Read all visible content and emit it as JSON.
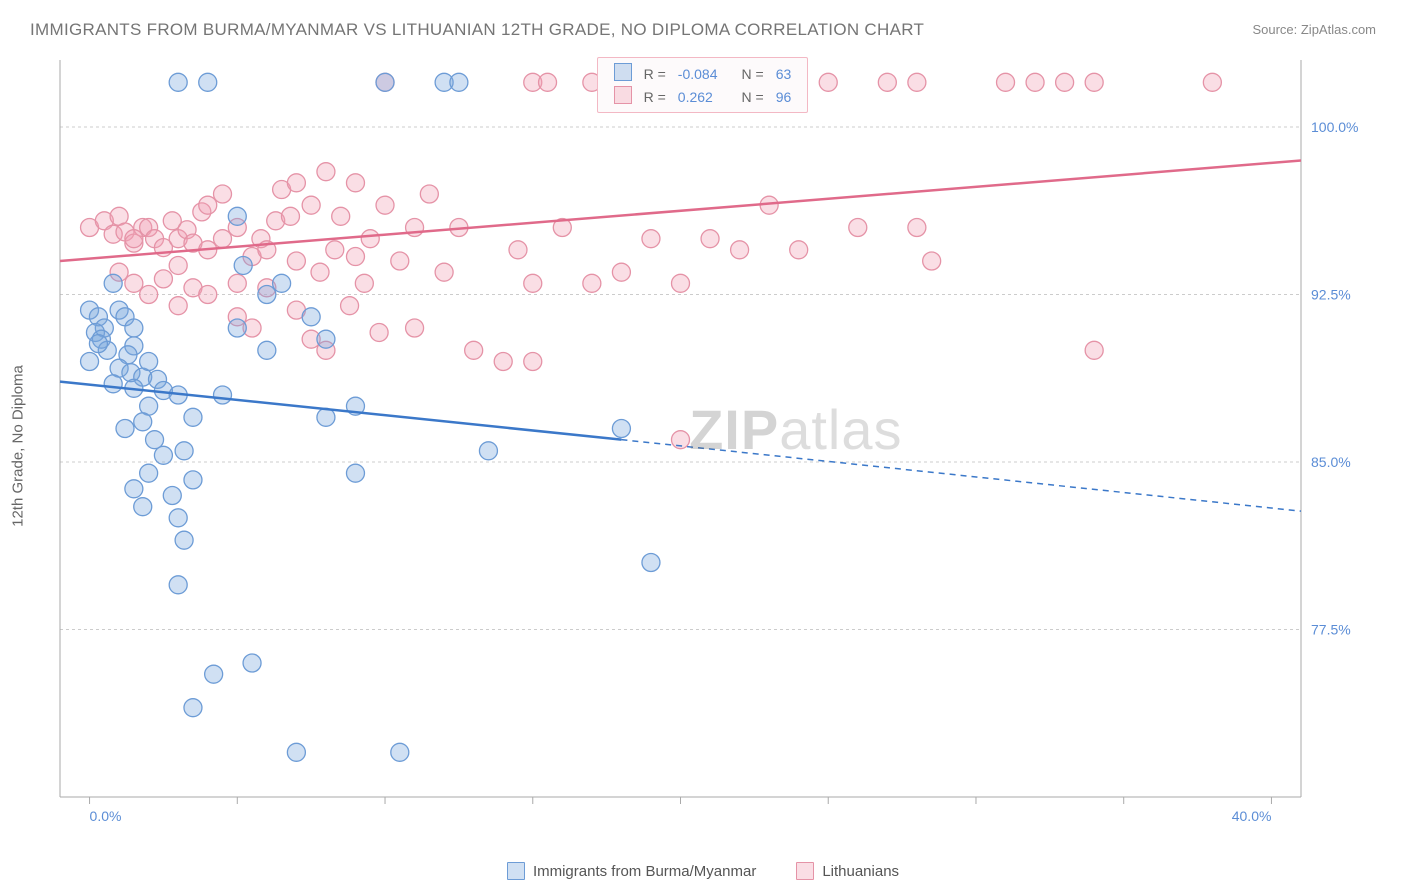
{
  "title": "IMMIGRANTS FROM BURMA/MYANMAR VS LITHUANIAN 12TH GRADE, NO DIPLOMA CORRELATION CHART",
  "source": "Source: ZipAtlas.com",
  "y_axis_label": "12th Grade, No Diploma",
  "watermark": {
    "part1": "ZIP",
    "part2": "atlas"
  },
  "colors": {
    "series_a_fill": "rgba(120,165,220,0.35)",
    "series_a_stroke": "#6d9cd6",
    "series_a_line": "#3b78c9",
    "series_b_fill": "rgba(240,160,180,0.35)",
    "series_b_stroke": "#e593a7",
    "series_b_line": "#e06a8a",
    "tick_text": "#5b8dd6",
    "grid": "#cccccc",
    "axis": "#aaaaaa"
  },
  "chart": {
    "type": "scatter",
    "xlim": [
      -1,
      41
    ],
    "ylim": [
      70,
      103
    ],
    "x_ticks": [
      0,
      5,
      10,
      15,
      20,
      25,
      30,
      35,
      40
    ],
    "x_tick_labels_shown": {
      "0": "0.0%",
      "40": "40.0%"
    },
    "y_ticks": [
      77.5,
      85.0,
      92.5,
      100.0
    ],
    "y_tick_labels": [
      "77.5%",
      "85.0%",
      "92.5%",
      "100.0%"
    ],
    "marker_radius": 9,
    "marker_stroke_width": 1.3,
    "trend_line_width": 2.5,
    "series_a": {
      "name": "Immigrants from Burma/Myanmar",
      "R": "-0.084",
      "N": "63",
      "trend": {
        "x1": -1,
        "y1": 88.6,
        "x2_solid": 18,
        "y2_solid": 86.0,
        "x2": 41,
        "y2": 82.8
      },
      "points": [
        [
          0,
          91.8
        ],
        [
          0.3,
          91.5
        ],
        [
          0.5,
          91.0
        ],
        [
          0.2,
          90.8
        ],
        [
          0.4,
          90.5
        ],
        [
          0.6,
          90.0
        ],
        [
          0.3,
          90.3
        ],
        [
          0,
          89.5
        ],
        [
          1,
          91.8
        ],
        [
          1.2,
          91.5
        ],
        [
          1.5,
          90.2
        ],
        [
          1.3,
          89.8
        ],
        [
          1,
          89.2
        ],
        [
          1.4,
          89.0
        ],
        [
          1.8,
          88.8
        ],
        [
          1.5,
          88.3
        ],
        [
          2,
          89.5
        ],
        [
          2.3,
          88.7
        ],
        [
          2.5,
          88.2
        ],
        [
          2,
          87.5
        ],
        [
          1.8,
          86.8
        ],
        [
          2.2,
          86.0
        ],
        [
          2.5,
          85.3
        ],
        [
          2,
          84.5
        ],
        [
          1.5,
          83.8
        ],
        [
          1.8,
          83.0
        ],
        [
          3,
          102
        ],
        [
          3,
          88
        ],
        [
          3.5,
          87
        ],
        [
          3.2,
          85.5
        ],
        [
          3.5,
          84.2
        ],
        [
          3,
          82.5
        ],
        [
          3.2,
          81.5
        ],
        [
          3,
          79.5
        ],
        [
          3.5,
          74.0
        ],
        [
          4,
          102
        ],
        [
          4.5,
          88
        ],
        [
          4.2,
          75.5
        ],
        [
          5,
          96
        ],
        [
          5.2,
          93.8
        ],
        [
          5,
          91.0
        ],
        [
          5.5,
          76.0
        ],
        [
          6,
          92.5
        ],
        [
          6.5,
          93
        ],
        [
          6,
          90
        ],
        [
          7,
          72.0
        ],
        [
          7.5,
          91.5
        ],
        [
          8,
          90.5
        ],
        [
          8,
          87.0
        ],
        [
          9,
          87.5
        ],
        [
          9,
          84.5
        ],
        [
          10,
          102
        ],
        [
          10.5,
          72.0
        ],
        [
          12,
          102
        ],
        [
          12.5,
          102
        ],
        [
          13.5,
          85.5
        ],
        [
          18,
          86.5
        ],
        [
          19,
          80.5
        ],
        [
          0.8,
          93
        ],
        [
          1.2,
          86.5
        ],
        [
          2.8,
          83.5
        ],
        [
          1.5,
          91.0
        ],
        [
          0.8,
          88.5
        ]
      ]
    },
    "series_b": {
      "name": "Lithuanians",
      "R": "0.262",
      "N": "96",
      "trend": {
        "x1": -1,
        "y1": 94.0,
        "x2": 41,
        "y2": 98.5
      },
      "points": [
        [
          0,
          95.5
        ],
        [
          0.5,
          95.8
        ],
        [
          0.8,
          95.2
        ],
        [
          1,
          96
        ],
        [
          1.2,
          95.3
        ],
        [
          1.5,
          94.8
        ],
        [
          1.8,
          95.5
        ],
        [
          1.5,
          95.0
        ],
        [
          2,
          95.5
        ],
        [
          2.2,
          95.0
        ],
        [
          2.5,
          94.6
        ],
        [
          2.8,
          95.8
        ],
        [
          3,
          95.0
        ],
        [
          3.3,
          95.4
        ],
        [
          3.5,
          94.8
        ],
        [
          3.8,
          96.2
        ],
        [
          1,
          93.5
        ],
        [
          1.5,
          93.0
        ],
        [
          2,
          92.5
        ],
        [
          2.5,
          93.2
        ],
        [
          3,
          92.0
        ],
        [
          3.5,
          92.8
        ],
        [
          4,
          94.5
        ],
        [
          4.5,
          95.0
        ],
        [
          4,
          96.5
        ],
        [
          4.5,
          97.0
        ],
        [
          5,
          95.5
        ],
        [
          5.5,
          94.2
        ],
        [
          5.8,
          95.0
        ],
        [
          5,
          91.5
        ],
        [
          5.5,
          91.0
        ],
        [
          6,
          94.5
        ],
        [
          6.3,
          95.8
        ],
        [
          6.5,
          97.2
        ],
        [
          6.8,
          96.0
        ],
        [
          7,
          94.0
        ],
        [
          7.5,
          96.5
        ],
        [
          7.8,
          93.5
        ],
        [
          7,
          91.8
        ],
        [
          7.5,
          90.5
        ],
        [
          8,
          98.0
        ],
        [
          8.5,
          96.0
        ],
        [
          8.3,
          94.5
        ],
        [
          8.8,
          92.0
        ],
        [
          8,
          90.0
        ],
        [
          9,
          97.5
        ],
        [
          9.5,
          95.0
        ],
        [
          9.3,
          93.0
        ],
        [
          9.8,
          90.8
        ],
        [
          10,
          96.5
        ],
        [
          10.5,
          94.0
        ],
        [
          10,
          102
        ],
        [
          11,
          95.5
        ],
        [
          11.5,
          97.0
        ],
        [
          11,
          91.0
        ],
        [
          12,
          93.5
        ],
        [
          12.5,
          95.5
        ],
        [
          13,
          90.0
        ],
        [
          14,
          89.5
        ],
        [
          14.5,
          94.5
        ],
        [
          15,
          93.0
        ],
        [
          15,
          102
        ],
        [
          15.5,
          102
        ],
        [
          15,
          89.5
        ],
        [
          16,
          95.5
        ],
        [
          17,
          93.0
        ],
        [
          17,
          102
        ],
        [
          18.5,
          102
        ],
        [
          18,
          93.5
        ],
        [
          19,
          95.0
        ],
        [
          20,
          93.0
        ],
        [
          20,
          86.0
        ],
        [
          21,
          95.0
        ],
        [
          22,
          94.5
        ],
        [
          22.5,
          102
        ],
        [
          23,
          96.5
        ],
        [
          23,
          102
        ],
        [
          24,
          94.5
        ],
        [
          25,
          102
        ],
        [
          26,
          95.5
        ],
        [
          27,
          102
        ],
        [
          28,
          95.5
        ],
        [
          28,
          102
        ],
        [
          28.5,
          94.0
        ],
        [
          31,
          102
        ],
        [
          32,
          102
        ],
        [
          33,
          102
        ],
        [
          34,
          102
        ],
        [
          34,
          90.0
        ],
        [
          38,
          102
        ],
        [
          7,
          97.5
        ],
        [
          5,
          93.0
        ],
        [
          6,
          92.8
        ],
        [
          3,
          93.8
        ],
        [
          4,
          92.5
        ],
        [
          9,
          94.2
        ]
      ]
    }
  },
  "legend_bottom": {
    "a": "Immigrants from Burma/Myanmar",
    "b": "Lithuanians"
  },
  "stat_legend": {
    "rows": [
      {
        "swatch": "a",
        "R_label": "R =",
        "R_val": "-0.084",
        "N_label": "N =",
        "N_val": "63"
      },
      {
        "swatch": "b",
        "R_label": "R =",
        "R_val": "0.262",
        "N_label": "N =",
        "N_val": "96"
      }
    ]
  }
}
